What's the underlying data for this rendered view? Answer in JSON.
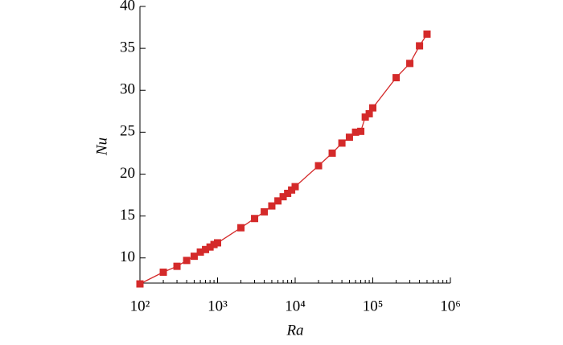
{
  "chart_data": {
    "type": "line",
    "x_label": "Ra",
    "y_label": "Nu",
    "x": [
      100,
      200,
      300,
      400,
      500,
      600,
      700,
      800,
      900,
      1000,
      2000,
      3000,
      4000,
      5000,
      6000,
      7000,
      8000,
      9000,
      10000,
      20000,
      30000,
      40000,
      50000,
      60000,
      70000,
      80000,
      90000,
      100000,
      200000,
      300000,
      400000,
      500000
    ],
    "values": [
      6.9,
      8.3,
      9.0,
      9.7,
      10.2,
      10.7,
      11.0,
      11.3,
      11.6,
      11.8,
      13.6,
      14.7,
      15.5,
      16.2,
      16.8,
      17.3,
      17.7,
      18.1,
      18.5,
      21.0,
      22.5,
      23.7,
      24.4,
      25.0,
      25.1,
      26.8,
      27.2,
      27.9,
      31.5,
      33.2,
      35.3,
      36.7
    ],
    "color": "#d42a2a",
    "xscale": "log",
    "xlim": [
      100,
      1000000
    ],
    "xticks": [
      {
        "value": 100,
        "label": "10²"
      },
      {
        "value": 1000,
        "label": "10³"
      },
      {
        "value": 10000,
        "label": "10⁴"
      },
      {
        "value": 100000,
        "label": "10⁵"
      },
      {
        "value": 1000000,
        "label": "10⁶"
      }
    ],
    "ylim": [
      7,
      40
    ],
    "yticks": [
      10,
      15,
      20,
      25,
      30,
      35,
      40
    ]
  }
}
